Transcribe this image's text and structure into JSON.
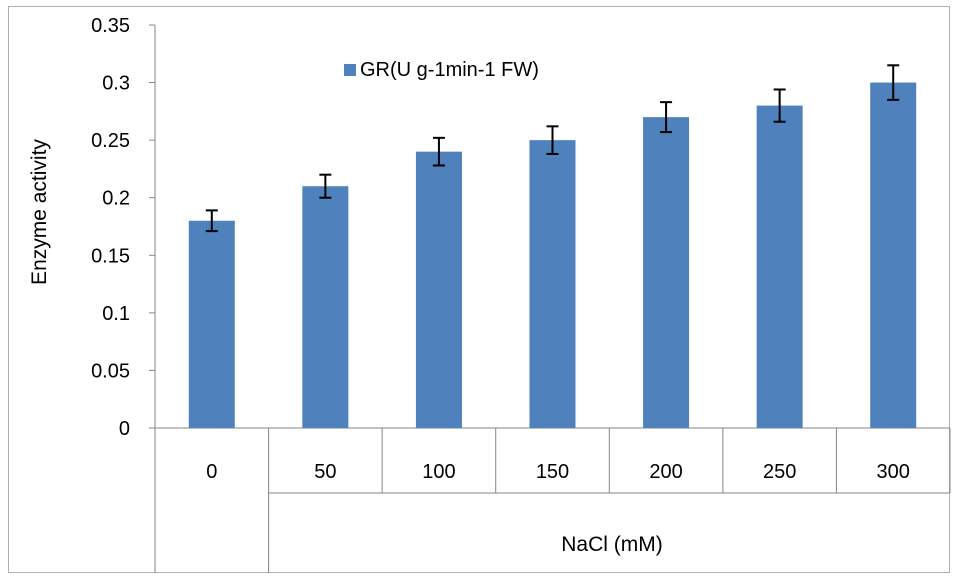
{
  "chart_data": {
    "type": "bar",
    "title": "",
    "xlabel": "NaCl (mM)",
    "ylabel": "Enzyme  activity",
    "categories": [
      "0",
      "50",
      "100",
      "150",
      "200",
      "250",
      "300"
    ],
    "series": [
      {
        "name": "GR(U g-1min-1 FW)",
        "values": [
          0.18,
          0.21,
          0.24,
          0.25,
          0.27,
          0.28,
          0.3
        ],
        "error": [
          0.009,
          0.01,
          0.012,
          0.012,
          0.013,
          0.014,
          0.015
        ],
        "color": "#4f81bd"
      }
    ],
    "ylim": [
      0,
      0.35
    ],
    "yticks": [
      "0",
      "0.05",
      "0.1",
      "0.15",
      "0.2",
      "0.25",
      "0.3",
      "0.35"
    ],
    "grid": false,
    "legend_position": "top-left"
  }
}
